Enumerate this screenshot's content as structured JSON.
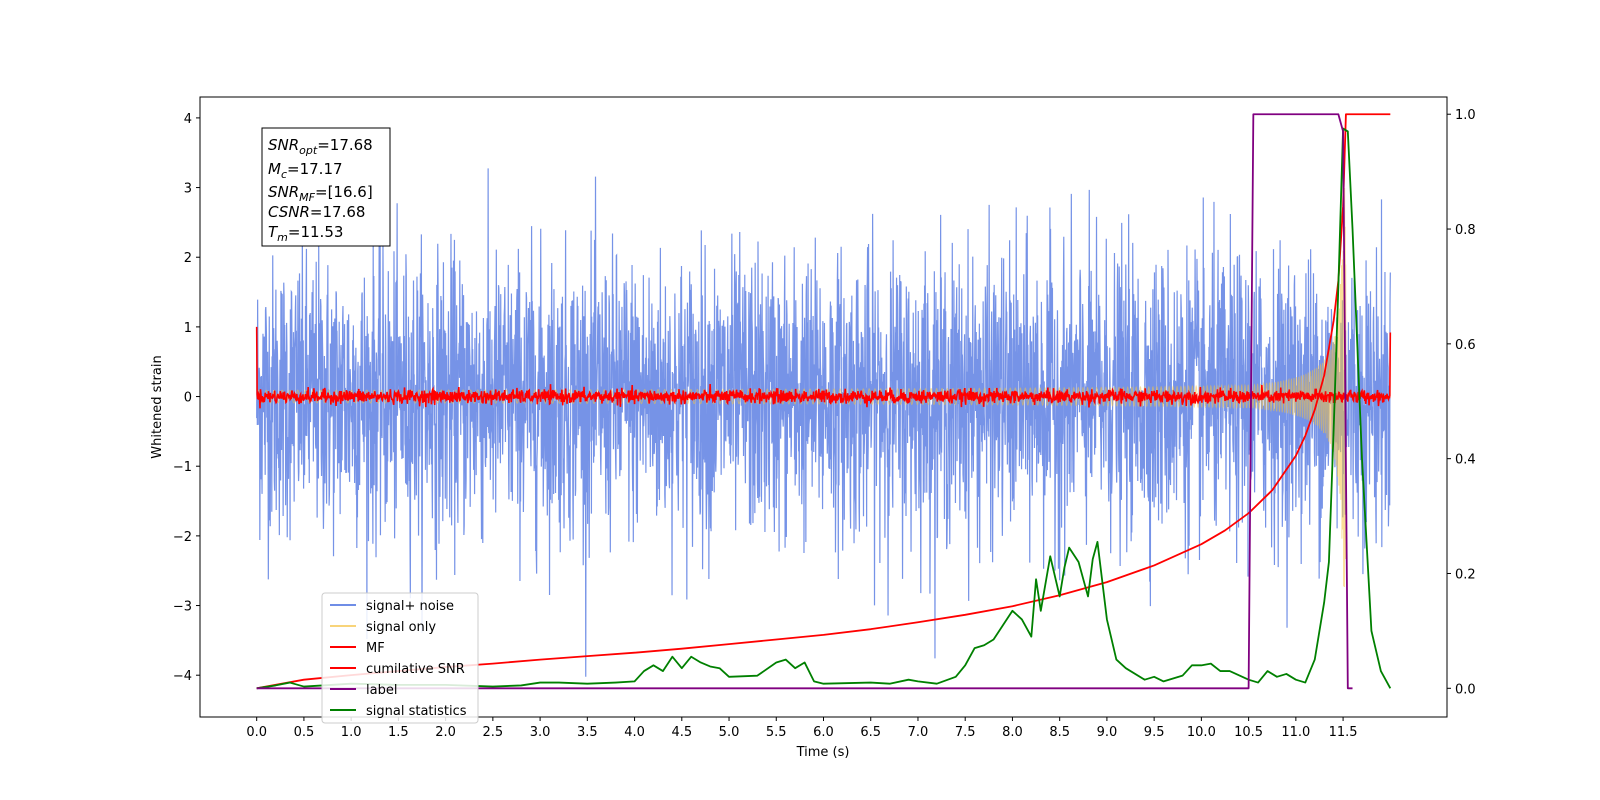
{
  "chart_data": {
    "type": "line",
    "xlabel": "Time (s)",
    "ylabel": "Whitened strain",
    "xlim": [
      -0.6,
      12.6
    ],
    "ylim": [
      -4.6,
      4.3
    ],
    "y2lim": [
      -0.05,
      1.03
    ],
    "xticks": [
      0.0,
      0.5,
      1.0,
      1.5,
      2.0,
      2.5,
      3.0,
      3.5,
      4.0,
      4.5,
      5.0,
      5.5,
      6.0,
      6.5,
      7.0,
      7.5,
      8.0,
      8.5,
      9.0,
      9.5,
      10.0,
      10.5,
      11.0,
      11.5
    ],
    "xtick_labels": [
      "0.0",
      "0.5",
      "1.0",
      "1.5",
      "2.0",
      "2.5",
      "3.0",
      "3.5",
      "4.0",
      "4.5",
      "5.0",
      "5.5",
      "6.0",
      "6.5",
      "7.0",
      "7.5",
      "8.0",
      "8.5",
      "9.0",
      "9.5",
      "10.0",
      "10.5",
      "11.0",
      "11.5"
    ],
    "yticks": [
      -4,
      -3,
      -2,
      -1,
      0,
      1,
      2,
      3,
      4
    ],
    "ytick_labels": [
      "−4",
      "−3",
      "−2",
      "−1",
      "0",
      "1",
      "2",
      "3",
      "4"
    ],
    "y2ticks": [
      0.0,
      0.2,
      0.4,
      0.6,
      0.8,
      1.0
    ],
    "y2tick_labels": [
      "0.0",
      "0.2",
      "0.4",
      "0.6",
      "0.8",
      "1.0"
    ],
    "legend_position": "lower-left",
    "annotation": {
      "line1": {
        "var": "SNR",
        "sub": "opt",
        "value": "=17.68"
      },
      "line2": {
        "var": "M",
        "sub": "c",
        "value": "=17.17"
      },
      "line3": {
        "var": "SNR",
        "sub": "MF",
        "value": "=[16.6]"
      },
      "line4": {
        "var": "CSNR",
        "sub": "",
        "value": "=17.68"
      },
      "line5": {
        "var": "T",
        "sub": "m",
        "value": "=11.53"
      }
    },
    "series": [
      {
        "name": "signal+ noise",
        "axis": "left",
        "color": "#6f8de6",
        "description_type": "noise",
        "x_range": [
          0.0,
          12.0
        ],
        "noise_sigma": 1.0,
        "y_min": -4.1,
        "y_max": 3.86
      },
      {
        "name": "signal only",
        "axis": "left",
        "color": "#f5c242",
        "description_type": "chirp",
        "x_range": [
          0.0,
          11.53
        ],
        "merger_time": 11.53,
        "peak_amplitude": 3.3
      },
      {
        "name": "MF",
        "axis": "left",
        "color": "#ff0000",
        "description_type": "mf-noise",
        "x_range": [
          0.0,
          12.0
        ],
        "start_value": 1.0,
        "end_value": 0.92,
        "noise_sigma": 0.05
      },
      {
        "name": "cumilative SNR",
        "axis": "right",
        "color": "#ff0000",
        "x": [
          0.0,
          0.5,
          1.0,
          1.5,
          2.0,
          2.5,
          3.0,
          3.5,
          4.0,
          4.5,
          5.0,
          5.5,
          6.0,
          6.5,
          7.0,
          7.5,
          8.0,
          8.5,
          9.0,
          9.5,
          10.0,
          10.25,
          10.5,
          10.75,
          11.0,
          11.1,
          11.2,
          11.3,
          11.4,
          11.45,
          11.5,
          11.53,
          12.0
        ],
        "values": [
          0.0,
          0.015,
          0.023,
          0.03,
          0.037,
          0.043,
          0.05,
          0.056,
          0.062,
          0.069,
          0.077,
          0.085,
          0.093,
          0.103,
          0.115,
          0.128,
          0.143,
          0.162,
          0.185,
          0.214,
          0.251,
          0.275,
          0.305,
          0.345,
          0.405,
          0.44,
          0.485,
          0.545,
          0.64,
          0.71,
          0.84,
          1.0,
          1.0
        ]
      },
      {
        "name": "label",
        "axis": "right",
        "color": "#800080",
        "x": [
          0.0,
          10.5,
          10.55,
          11.45,
          11.5,
          11.55,
          11.6
        ],
        "values": [
          0.0,
          0.0,
          1.0,
          1.0,
          0.97,
          0.0,
          0.0
        ]
      },
      {
        "name": "signal statistics",
        "axis": "right",
        "color": "#008000",
        "x": [
          0.0,
          0.2,
          0.35,
          0.5,
          0.7,
          1.0,
          1.5,
          2.0,
          2.5,
          2.8,
          3.0,
          3.2,
          3.5,
          3.8,
          4.0,
          4.1,
          4.2,
          4.3,
          4.4,
          4.5,
          4.6,
          4.7,
          4.8,
          4.9,
          5.0,
          5.3,
          5.5,
          5.6,
          5.7,
          5.8,
          5.9,
          6.0,
          6.5,
          6.7,
          6.9,
          7.0,
          7.2,
          7.4,
          7.5,
          7.6,
          7.7,
          7.8,
          7.9,
          8.0,
          8.1,
          8.2,
          8.25,
          8.3,
          8.4,
          8.5,
          8.55,
          8.6,
          8.7,
          8.8,
          8.85,
          8.9,
          9.0,
          9.1,
          9.2,
          9.4,
          9.5,
          9.6,
          9.8,
          9.9,
          10.0,
          10.1,
          10.2,
          10.3,
          10.5,
          10.6,
          10.7,
          10.8,
          10.9,
          11.0,
          11.1,
          11.2,
          11.3,
          11.35,
          11.4,
          11.45,
          11.5,
          11.55,
          11.6,
          11.7,
          11.8,
          11.9,
          12.0
        ],
        "values": [
          0.0,
          0.005,
          0.01,
          0.003,
          0.005,
          0.008,
          0.006,
          0.006,
          0.003,
          0.005,
          0.01,
          0.01,
          0.008,
          0.01,
          0.012,
          0.03,
          0.04,
          0.03,
          0.055,
          0.035,
          0.055,
          0.045,
          0.038,
          0.035,
          0.02,
          0.022,
          0.045,
          0.05,
          0.035,
          0.045,
          0.012,
          0.008,
          0.01,
          0.008,
          0.015,
          0.012,
          0.008,
          0.02,
          0.04,
          0.07,
          0.075,
          0.085,
          0.11,
          0.135,
          0.12,
          0.09,
          0.19,
          0.135,
          0.23,
          0.16,
          0.21,
          0.245,
          0.22,
          0.16,
          0.225,
          0.255,
          0.12,
          0.05,
          0.035,
          0.015,
          0.02,
          0.012,
          0.022,
          0.04,
          0.04,
          0.043,
          0.03,
          0.03,
          0.015,
          0.01,
          0.03,
          0.02,
          0.025,
          0.015,
          0.01,
          0.05,
          0.15,
          0.22,
          0.45,
          0.7,
          0.975,
          0.97,
          0.8,
          0.4,
          0.1,
          0.03,
          0.0
        ]
      }
    ]
  }
}
